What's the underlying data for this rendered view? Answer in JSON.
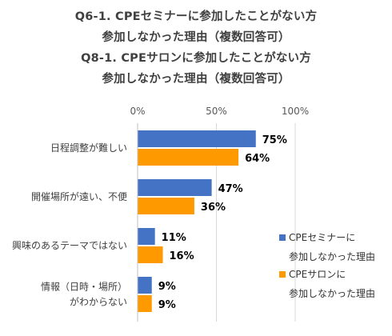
{
  "title_lines": [
    "Q6-1. CPEセミナーに参加したことがない方",
    "参加しなかった理由（複数回答可）",
    "Q8-1. CPEサロンに参加したことがない方",
    "参加しなかった理由（複数回答可）"
  ],
  "chart_data": {
    "type": "bar",
    "orientation": "horizontal",
    "categories": [
      [
        "日程調整が難しい"
      ],
      [
        "開催場所が遠い、不便"
      ],
      [
        "興味のあるテーマではない"
      ],
      [
        "情報（日時・場所）",
        "がわからない"
      ]
    ],
    "series": [
      {
        "name_lines": [
          "CPEセミナーに",
          "参加しなかった理由"
        ],
        "color": "#4472C4",
        "values": [
          75,
          47,
          11,
          9
        ],
        "labels": [
          "75%",
          "47%",
          "11%",
          "9%"
        ]
      },
      {
        "name_lines": [
          "CPEサロンに",
          "参加しなかった理由"
        ],
        "color": "#FF9900",
        "values": [
          64,
          36,
          16,
          9
        ],
        "labels": [
          "64%",
          "36%",
          "16%",
          "9%"
        ]
      }
    ],
    "xlim": [
      0,
      100
    ],
    "ticks": [
      0,
      50,
      100
    ],
    "tick_labels": [
      "0%",
      "50%",
      "100%"
    ],
    "grid": "vertical",
    "legend_position": "right"
  }
}
